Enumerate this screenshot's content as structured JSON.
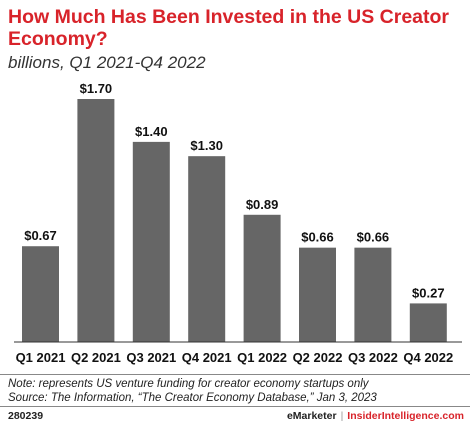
{
  "header": {
    "title": "How Much Has Been Invested in the US Creator Economy?",
    "subtitle": "billions, Q1 2021-Q4 2022"
  },
  "chart_data": {
    "type": "bar",
    "categories": [
      "Q1 2021",
      "Q2 2021",
      "Q3 2021",
      "Q4 2021",
      "Q1 2022",
      "Q2 2022",
      "Q3 2022",
      "Q4 2022"
    ],
    "values": [
      0.67,
      1.7,
      1.4,
      1.3,
      0.89,
      0.66,
      0.66,
      0.27
    ],
    "data_labels": [
      "$0.67",
      "$1.70",
      "$1.40",
      "$1.30",
      "$0.89",
      "$0.66",
      "$0.66",
      "$0.27"
    ],
    "title": "How Much Has Been Invested in the US Creator Economy?",
    "subtitle": "billions, Q1 2021-Q4 2022",
    "xlabel": "",
    "ylabel": "",
    "ylim": [
      0,
      1.7
    ],
    "grid": false,
    "bar_color": "#666666"
  },
  "notes": {
    "note": "Note: represents US venture funding for creator economy startups only",
    "source": "Source: The Information, “The Creator Economy Database,” Jan 3, 2023"
  },
  "footer": {
    "chart_id": "280239",
    "brand1": "eMarketer",
    "separator": "|",
    "brand2": "InsiderIntelligence.com"
  },
  "colors": {
    "title": "#d8232a",
    "bars": "#666666",
    "brand_accent": "#d8232a"
  }
}
